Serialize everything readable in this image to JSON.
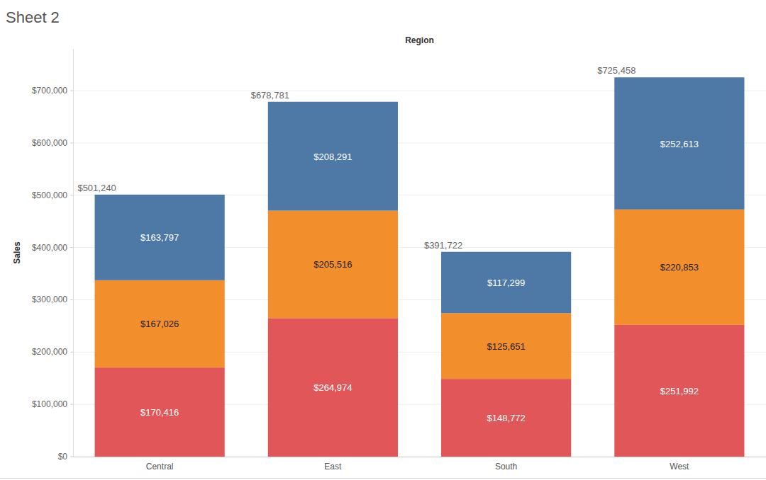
{
  "chart_data": {
    "type": "bar",
    "title": "Sheet 2",
    "x_label": "Region",
    "y_label": "Sales",
    "categories": [
      "Central",
      "East",
      "South",
      "West"
    ],
    "series": [
      {
        "color": "#e15759",
        "values": [
          170416,
          264974,
          148772,
          251992
        ],
        "value_labels": [
          "$170,416",
          "$264,974",
          "$148,772",
          "$251,992"
        ]
      },
      {
        "color": "#f28e2b",
        "values": [
          167026,
          205516,
          125651,
          220853
        ],
        "value_labels": [
          "$167,026",
          "$205,516",
          "$125,651",
          "$220,853"
        ]
      },
      {
        "color": "#4e79a7",
        "values": [
          163797,
          208291,
          117299,
          252613
        ],
        "value_labels": [
          "$163,797",
          "$208,291",
          "$117,299",
          "$252,613"
        ]
      }
    ],
    "annotations": [
      {
        "text": "$501,240",
        "x": "Central",
        "y": 501240
      },
      {
        "text": "$678,781",
        "x": "East",
        "y": 678781
      },
      {
        "text": "$391,722",
        "x": "South",
        "y": 391722
      },
      {
        "text": "$725,458",
        "x": "West",
        "y": 725458
      }
    ],
    "ylim": [
      0,
      780000
    ],
    "yticks": [
      {
        "value": 0,
        "label": "$0"
      },
      {
        "value": 100000,
        "label": "$100,000"
      },
      {
        "value": 200000,
        "label": "$200,000"
      },
      {
        "value": 300000,
        "label": "$300,000"
      },
      {
        "value": 400000,
        "label": "$400,000"
      },
      {
        "value": 500000,
        "label": "$500,000"
      },
      {
        "value": 600000,
        "label": "$600,000"
      },
      {
        "value": 700000,
        "label": "$700,000"
      }
    ],
    "stacked": true,
    "data_labels": true,
    "grid": true
  }
}
